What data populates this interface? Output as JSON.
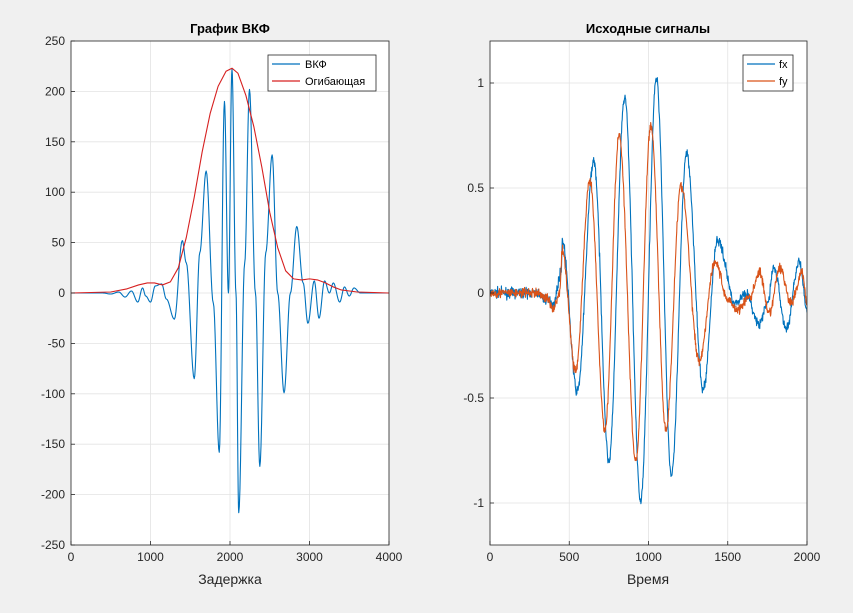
{
  "chart_data": [
    {
      "type": "line",
      "title": "График ВКФ",
      "xlabel": "Задержка",
      "ylabel": "",
      "xlim": [
        0,
        4000
      ],
      "ylim": [
        -250,
        250
      ],
      "xticks": [
        0,
        1000,
        2000,
        3000,
        4000
      ],
      "yticks": [
        250,
        200,
        150,
        100,
        50,
        0,
        -50,
        -100,
        -150,
        -200,
        -250
      ],
      "grid": true,
      "legend_position": "top-right",
      "series": [
        {
          "name": "ВКФ",
          "color": "#0072bd",
          "description": "Oscillating cross-correlation, period ~320 lag units, peak 222 at lag 2025",
          "points": [
            [
              0,
              0
            ],
            [
              400,
              0
            ],
            [
              500,
              -1
            ],
            [
              600,
              1
            ],
            [
              680,
              -4
            ],
            [
              760,
              2
            ],
            [
              840,
              -9
            ],
            [
              900,
              5
            ],
            [
              940,
              -3
            ],
            [
              1000,
              -9
            ],
            [
              1060,
              7
            ],
            [
              1140,
              9
            ],
            [
              1200,
              -6
            ],
            [
              1300,
              -26
            ],
            [
              1400,
              52
            ],
            [
              1450,
              30
            ],
            [
              1550,
              -85
            ],
            [
              1620,
              40
            ],
            [
              1700,
              121
            ],
            [
              1790,
              -10
            ],
            [
              1865,
              -158
            ],
            [
              1930,
              190
            ],
            [
              1980,
              0
            ],
            [
              2025,
              222
            ],
            [
              2075,
              0
            ],
            [
              2110,
              -218
            ],
            [
              2185,
              30
            ],
            [
              2245,
              202
            ],
            [
              2320,
              0
            ],
            [
              2375,
              -172
            ],
            [
              2450,
              40
            ],
            [
              2530,
              137
            ],
            [
              2600,
              0
            ],
            [
              2680,
              -99
            ],
            [
              2760,
              0
            ],
            [
              2840,
              66
            ],
            [
              2920,
              10
            ],
            [
              2980,
              -30
            ],
            [
              3060,
              12
            ],
            [
              3120,
              -25
            ],
            [
              3190,
              12
            ],
            [
              3250,
              0
            ],
            [
              3300,
              10
            ],
            [
              3380,
              -9
            ],
            [
              3440,
              6
            ],
            [
              3500,
              -3
            ],
            [
              3560,
              5
            ],
            [
              3640,
              0
            ],
            [
              4000,
              0
            ]
          ]
        },
        {
          "name": "Огибающая",
          "color": "#d62020",
          "description": "Envelope of the cross-correlation",
          "points": [
            [
              0,
              0
            ],
            [
              500,
              1
            ],
            [
              700,
              4
            ],
            [
              850,
              8
            ],
            [
              960,
              10
            ],
            [
              1050,
              10
            ],
            [
              1150,
              8
            ],
            [
              1250,
              11
            ],
            [
              1350,
              25
            ],
            [
              1450,
              55
            ],
            [
              1550,
              95
            ],
            [
              1650,
              140
            ],
            [
              1750,
              178
            ],
            [
              1850,
              205
            ],
            [
              1950,
              220
            ],
            [
              2025,
              223
            ],
            [
              2100,
              218
            ],
            [
              2200,
              196
            ],
            [
              2300,
              165
            ],
            [
              2400,
              125
            ],
            [
              2500,
              80
            ],
            [
              2600,
              45
            ],
            [
              2700,
              22
            ],
            [
              2800,
              14
            ],
            [
              2900,
              13
            ],
            [
              3000,
              14
            ],
            [
              3100,
              13
            ],
            [
              3200,
              10
            ],
            [
              3300,
              6
            ],
            [
              3400,
              3
            ],
            [
              3600,
              1
            ],
            [
              4000,
              0
            ]
          ]
        }
      ]
    },
    {
      "type": "line",
      "title": "Исходные сигналы",
      "xlabel": "Время",
      "ylabel": "",
      "xlim": [
        0,
        2000
      ],
      "ylim": [
        -1.2,
        1.2
      ],
      "xticks": [
        0,
        500,
        1000,
        1500,
        2000
      ],
      "yticks": [
        1,
        0.5,
        0,
        -0.5,
        -1
      ],
      "grid": true,
      "legend_position": "top-right",
      "series": [
        {
          "name": "fx",
          "color": "#0072bd",
          "description": "Noisy modulated sinusoid, period ~200 time units",
          "points": [
            [
              0,
              0
            ],
            [
              300,
              0
            ],
            [
              350,
              -0.03
            ],
            [
              400,
              -0.05
            ],
            [
              450,
              0.1
            ],
            [
              455,
              0.25
            ],
            [
              550,
              -0.47
            ],
            [
              655,
              0.63
            ],
            [
              750,
              -0.8
            ],
            [
              850,
              0.93
            ],
            [
              950,
              -0.99
            ],
            [
              1050,
              1.02
            ],
            [
              1145,
              -0.87
            ],
            [
              1240,
              0.67
            ],
            [
              1345,
              -0.46
            ],
            [
              1435,
              0.25
            ],
            [
              1550,
              -0.05
            ],
            [
              1610,
              0
            ],
            [
              1700,
              -0.15
            ],
            [
              1750,
              -0.05
            ],
            [
              1790,
              0.12
            ],
            [
              1870,
              -0.17
            ],
            [
              1950,
              0.15
            ],
            [
              2000,
              -0.08
            ]
          ]
        },
        {
          "name": "fy",
          "color": "#d95319",
          "description": "Noisy sinusoid, slightly smaller amplitude than fx",
          "points": [
            [
              0,
              0
            ],
            [
              300,
              0
            ],
            [
              350,
              -0.02
            ],
            [
              400,
              -0.07
            ],
            [
              440,
              0.0
            ],
            [
              455,
              0.2
            ],
            [
              540,
              -0.37
            ],
            [
              630,
              0.53
            ],
            [
              725,
              -0.65
            ],
            [
              815,
              0.75
            ],
            [
              920,
              -0.8
            ],
            [
              1015,
              0.8
            ],
            [
              1110,
              -0.65
            ],
            [
              1205,
              0.51
            ],
            [
              1320,
              -0.32
            ],
            [
              1420,
              0.15
            ],
            [
              1500,
              -0.03
            ],
            [
              1560,
              -0.08
            ],
            [
              1640,
              -0.02
            ],
            [
              1700,
              0.1
            ],
            [
              1760,
              -0.1
            ],
            [
              1830,
              0.12
            ],
            [
              1900,
              -0.05
            ],
            [
              1970,
              0.1
            ],
            [
              2000,
              -0.05
            ]
          ]
        }
      ]
    }
  ]
}
